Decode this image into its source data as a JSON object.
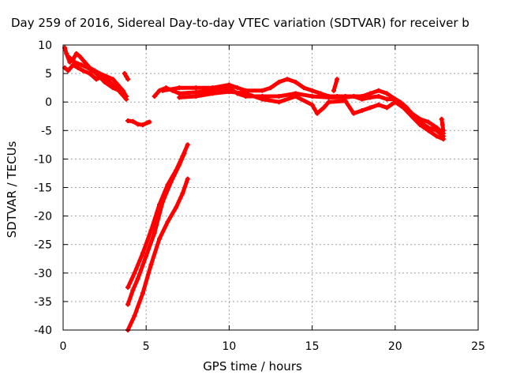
{
  "chart_data": {
    "type": "scatter",
    "title": "Day 259 of 2016, Sidereal Day-to-day VTEC variation (SDTVAR) for receiver b",
    "xlabel": "GPS time / hours",
    "ylabel": "SDTVAR / TECUs",
    "xlim": [
      0,
      25
    ],
    "ylim": [
      -40,
      10
    ],
    "xticks": [
      0,
      5,
      10,
      15,
      20,
      25
    ],
    "yticks": [
      10,
      5,
      0,
      -5,
      -10,
      -15,
      -20,
      -25,
      -30,
      -35,
      -40
    ],
    "grid": true,
    "series_color": "#ff0000",
    "series": [
      {
        "points": [
          [
            0.1,
            9.5
          ],
          [
            0.2,
            8.5
          ],
          [
            0.4,
            7.0
          ],
          [
            0.6,
            7.5
          ],
          [
            0.8,
            8.5
          ],
          [
            1.0,
            8.0
          ],
          [
            1.3,
            7.0
          ],
          [
            1.6,
            6.0
          ],
          [
            1.9,
            5.5
          ],
          [
            2.2,
            5.0
          ],
          [
            2.6,
            4.5
          ],
          [
            3.0,
            4.0
          ],
          [
            3.3,
            3.0
          ],
          [
            3.6,
            2.0
          ],
          [
            3.8,
            1.0
          ]
        ]
      },
      {
        "points": [
          [
            0.1,
            6.0
          ],
          [
            0.3,
            5.5
          ],
          [
            0.6,
            6.5
          ],
          [
            0.9,
            6.0
          ],
          [
            1.2,
            5.5
          ],
          [
            1.6,
            5.0
          ],
          [
            2.0,
            4.0
          ],
          [
            2.4,
            4.5
          ],
          [
            2.8,
            3.5
          ],
          [
            3.2,
            2.5
          ],
          [
            3.5,
            1.5
          ],
          [
            3.8,
            0.5
          ]
        ]
      },
      {
        "points": [
          [
            0.3,
            8.0
          ],
          [
            0.7,
            7.0
          ],
          [
            1.1,
            6.5
          ],
          [
            1.5,
            6.0
          ],
          [
            2.0,
            5.0
          ],
          [
            2.5,
            3.5
          ],
          [
            3.0,
            2.5
          ],
          [
            3.4,
            2.0
          ]
        ]
      },
      {
        "points": [
          [
            3.7,
            5.0
          ],
          [
            3.8,
            4.5
          ],
          [
            3.9,
            4.0
          ]
        ]
      },
      {
        "points": [
          [
            3.9,
            -3.3
          ],
          [
            4.2,
            -3.4
          ],
          [
            4.5,
            -3.9
          ],
          [
            4.8,
            -4.0
          ],
          [
            5.1,
            -3.6
          ],
          [
            5.2,
            -3.5
          ]
        ]
      },
      {
        "points": [
          [
            3.9,
            -32.5
          ],
          [
            4.3,
            -30.0
          ],
          [
            4.8,
            -26.5
          ],
          [
            5.3,
            -22.5
          ],
          [
            5.8,
            -18.0
          ],
          [
            6.3,
            -14.5
          ],
          [
            6.8,
            -12.0
          ],
          [
            7.2,
            -9.5
          ],
          [
            7.5,
            -7.5
          ]
        ]
      },
      {
        "points": [
          [
            3.9,
            -35.5
          ],
          [
            4.2,
            -33.0
          ],
          [
            4.5,
            -31.0
          ],
          [
            5.0,
            -27.0
          ],
          [
            5.5,
            -23.0
          ],
          [
            6.0,
            -17.5
          ],
          [
            6.5,
            -14.0
          ],
          [
            7.0,
            -11.0
          ],
          [
            7.3,
            -9.0
          ]
        ]
      },
      {
        "points": [
          [
            3.9,
            -40.0
          ],
          [
            4.3,
            -37.5
          ],
          [
            4.8,
            -33.5
          ],
          [
            5.3,
            -28.5
          ],
          [
            5.8,
            -24.0
          ],
          [
            6.3,
            -21.0
          ],
          [
            6.8,
            -18.5
          ],
          [
            7.2,
            -16.0
          ],
          [
            7.5,
            -13.5
          ]
        ]
      },
      {
        "points": [
          [
            5.5,
            1.0
          ],
          [
            5.8,
            2.0
          ],
          [
            6.2,
            2.5
          ],
          [
            6.6,
            2.0
          ],
          [
            7.0,
            1.5
          ],
          [
            8.0,
            1.7
          ],
          [
            9.0,
            2.0
          ],
          [
            10.0,
            2.5
          ],
          [
            10.5,
            1.5
          ],
          [
            11.0,
            1.0
          ],
          [
            12.0,
            1.0
          ],
          [
            13.0,
            1.0
          ],
          [
            14.0,
            1.5
          ],
          [
            15.0,
            1.0
          ],
          [
            16.0,
            0.8
          ],
          [
            17.0,
            0.8
          ],
          [
            17.5,
            1.0
          ],
          [
            18.0,
            0.5
          ],
          [
            18.5,
            0.8
          ],
          [
            19.0,
            1.0
          ],
          [
            19.5,
            0.5
          ],
          [
            20.0,
            0.5
          ],
          [
            20.3,
            0.0
          ],
          [
            20.7,
            -1.0
          ],
          [
            21.0,
            -2.0
          ],
          [
            21.5,
            -3.0
          ],
          [
            22.0,
            -3.5
          ],
          [
            22.5,
            -4.5
          ],
          [
            22.9,
            -5.5
          ]
        ]
      },
      {
        "points": [
          [
            6.0,
            2.0
          ],
          [
            7.0,
            2.5
          ],
          [
            8.0,
            2.5
          ],
          [
            9.0,
            2.5
          ],
          [
            10.0,
            3.0
          ],
          [
            10.5,
            2.5
          ],
          [
            11.0,
            2.0
          ],
          [
            12.0,
            2.0
          ],
          [
            12.5,
            2.5
          ],
          [
            13.0,
            3.5
          ],
          [
            13.5,
            4.0
          ],
          [
            14.0,
            3.5
          ],
          [
            14.5,
            2.5
          ],
          [
            15.0,
            2.0
          ],
          [
            15.5,
            1.5
          ],
          [
            16.0,
            1.0
          ],
          [
            16.5,
            1.0
          ],
          [
            17.0,
            1.0
          ],
          [
            18.0,
            1.0
          ],
          [
            18.5,
            1.5
          ],
          [
            19.0,
            2.0
          ],
          [
            19.5,
            1.5
          ],
          [
            20.0,
            0.5
          ],
          [
            20.5,
            -0.5
          ],
          [
            21.0,
            -2.0
          ],
          [
            21.5,
            -3.5
          ],
          [
            22.0,
            -4.5
          ],
          [
            22.5,
            -5.0
          ],
          [
            22.9,
            -6.0
          ]
        ]
      },
      {
        "points": [
          [
            7.0,
            0.8
          ],
          [
            8.0,
            1.0
          ],
          [
            9.0,
            1.5
          ],
          [
            10.0,
            1.8
          ],
          [
            11.0,
            1.5
          ],
          [
            12.0,
            0.5
          ],
          [
            13.0,
            0.0
          ],
          [
            14.0,
            1.0
          ],
          [
            15.0,
            -0.5
          ],
          [
            15.3,
            -2.0
          ],
          [
            15.7,
            -1.0
          ],
          [
            16.0,
            0.0
          ],
          [
            17.0,
            0.2
          ],
          [
            17.5,
            -2.0
          ],
          [
            18.0,
            -1.5
          ],
          [
            18.5,
            -1.0
          ],
          [
            19.0,
            -0.5
          ],
          [
            19.5,
            -1.0
          ],
          [
            20.0,
            0.0
          ],
          [
            20.5,
            -1.0
          ],
          [
            21.0,
            -2.5
          ],
          [
            21.5,
            -4.0
          ],
          [
            22.0,
            -5.0
          ],
          [
            22.5,
            -6.0
          ],
          [
            22.9,
            -6.5
          ]
        ]
      },
      {
        "points": [
          [
            22.8,
            -3.0
          ],
          [
            22.85,
            -4.0
          ],
          [
            22.9,
            -5.0
          ]
        ]
      },
      {
        "points": [
          [
            16.3,
            2.0
          ],
          [
            16.5,
            4.0
          ]
        ]
      }
    ]
  }
}
